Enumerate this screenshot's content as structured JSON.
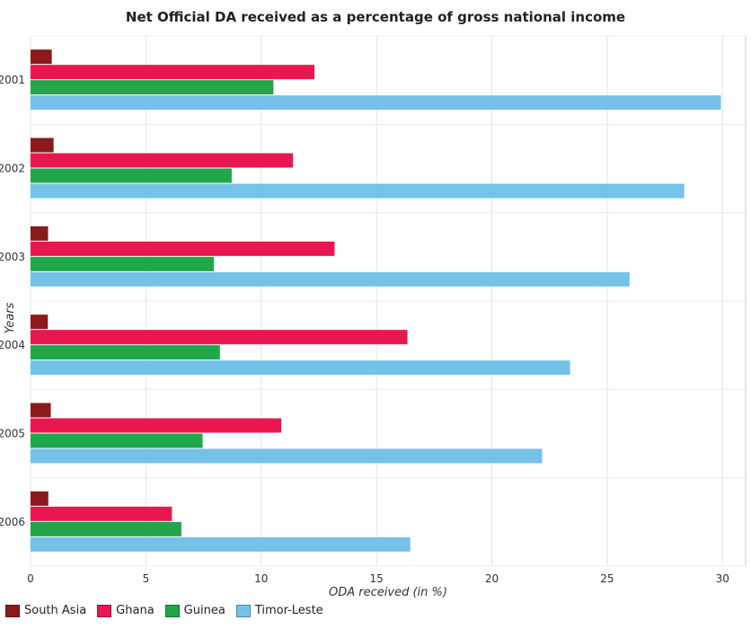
{
  "chart_data": {
    "type": "bar",
    "orientation": "horizontal",
    "title": "Net Official DA received as a percentage of gross national income",
    "xlabel": "ODA received (in %)",
    "ylabel": "Years",
    "categories": [
      "2001",
      "2002",
      "2003",
      "2004",
      "2005",
      "2006"
    ],
    "xlim": [
      0,
      31
    ],
    "xticks": [
      "0",
      "5",
      "10",
      "15",
      "20",
      "25",
      "30"
    ],
    "grid": true,
    "legend_position": "bottom-left",
    "series": [
      {
        "name": "South Asia",
        "color": "#8B1A1A",
        "values": [
          0.92,
          1.0,
          0.76,
          0.75,
          0.88,
          0.77
        ]
      },
      {
        "name": "Ghana",
        "color": "#E8174F",
        "values": [
          12.31,
          11.38,
          13.18,
          16.34,
          10.87,
          6.13
        ]
      },
      {
        "name": "Guinea",
        "color": "#21A64A",
        "values": [
          10.53,
          8.72,
          7.95,
          8.21,
          7.46,
          6.54
        ]
      },
      {
        "name": "Timor-Leste",
        "color": "#74C2E8",
        "values": [
          29.93,
          28.34,
          25.97,
          23.39,
          22.18,
          16.46
        ]
      }
    ]
  }
}
